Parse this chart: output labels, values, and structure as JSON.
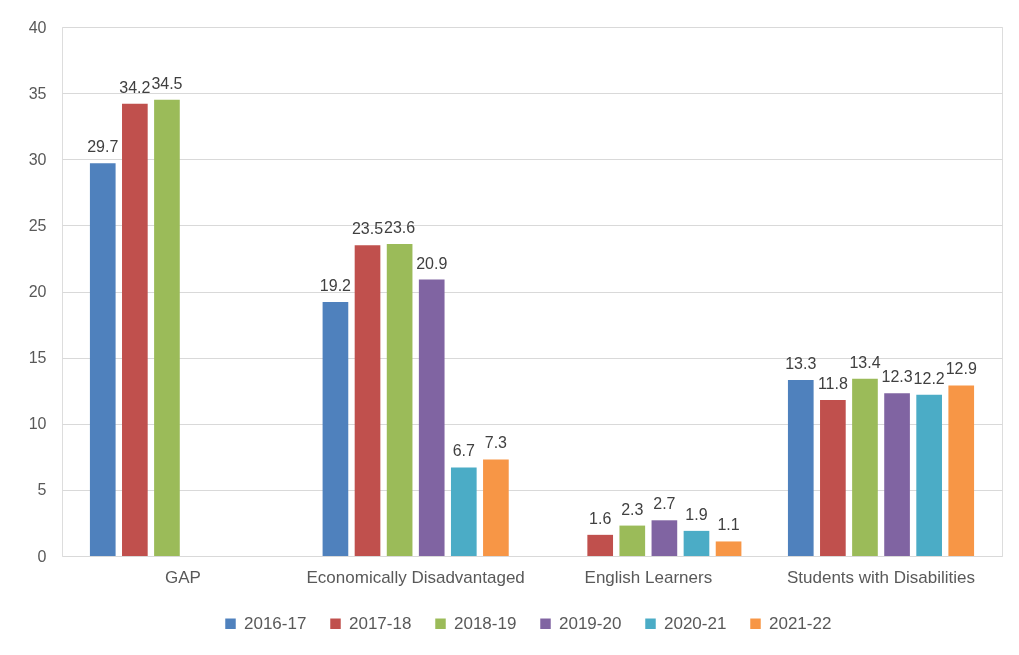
{
  "chart_data": {
    "type": "bar",
    "categories": [
      "GAP",
      "Economically Disadvantaged",
      "English Learners",
      "Students with Disabilities"
    ],
    "series": [
      {
        "name": "2016-17",
        "color": "#4f81bd",
        "values": [
          29.7,
          19.2,
          null,
          13.3
        ]
      },
      {
        "name": "2017-18",
        "color": "#c0504d",
        "values": [
          34.2,
          23.5,
          1.6,
          11.8
        ]
      },
      {
        "name": "2018-19",
        "color": "#9bbb59",
        "values": [
          34.5,
          23.6,
          2.3,
          13.4
        ]
      },
      {
        "name": "2019-20",
        "color": "#8064a2",
        "values": [
          null,
          20.9,
          2.7,
          12.3
        ]
      },
      {
        "name": "2020-21",
        "color": "#4bacc6",
        "values": [
          null,
          6.7,
          1.9,
          12.2
        ]
      },
      {
        "name": "2021-22",
        "color": "#f79646",
        "values": [
          null,
          7.3,
          1.1,
          12.9
        ]
      }
    ],
    "ylim": [
      0,
      40
    ],
    "yticks": [
      0,
      5,
      10,
      15,
      20,
      25,
      30,
      35,
      40
    ],
    "grid": "y",
    "legend": "bottom",
    "data_labels": true
  }
}
